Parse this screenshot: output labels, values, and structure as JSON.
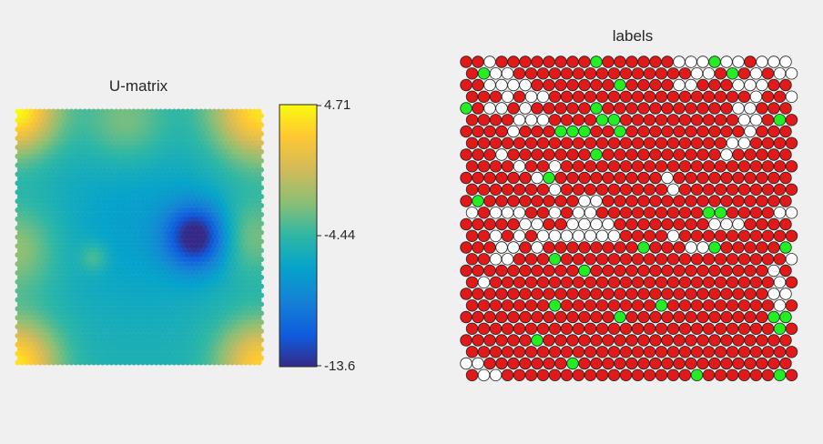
{
  "chart_data": [
    {
      "type": "heatmap",
      "title": "U-matrix",
      "lattice": "hexagonal",
      "colormap": "parula",
      "colorbar": {
        "ticks": [
          "4.71",
          "-4.44",
          "-13.6"
        ],
        "values": [
          4.71,
          -4.44,
          -13.6
        ],
        "lim": [
          -13.6,
          4.71
        ]
      },
      "features": [
        {
          "desc": "high corners",
          "value": 4.71
        },
        {
          "desc": "low basin right-center",
          "value": -13.6
        }
      ]
    },
    {
      "type": "heatmap",
      "title": "labels",
      "lattice": "hexagonal",
      "rows": 28,
      "cols": 28,
      "classes": [
        {
          "color": "#e11919"
        },
        {
          "color": "#ffffff"
        },
        {
          "color": "#22ee22"
        }
      ],
      "grid": [
        "RRWRRRRRRRRGRRRRRRWWWGWWRWWW",
        "RGWWRRRRRRRRRRRRRRRWWRGRWRWW",
        "RRWWWWRRRRRRRGRRRRWWRRRWWWRR",
        "RRRWRWWRRRRRRRRRRRRRRRRRWRRW",
        "GRWWRWRRRRRGRRRRRRRRRRRWWRRR",
        "RRRRWWWRRRRGGRRRRRRRRRRWWRGR",
        "RRRRWRRRGGGRRGRRRRRRRRRRWRRR",
        "RRRRRRRRRRRRRRRRRRRRRRWWRRRR",
        "RRRWRRRRRRRGRRRRRRRRRRWRRRRR",
        "RRRRWRRWRRRRRRRRRRRRRRRRRRRR",
        "RRRRRRWGRRRRRRRRRWRRRRRRRRRR",
        "RRRRRRRWRRRRRRRRRWRRRRRRRRRR",
        "RGRRRRRRRRWWRRRRRRRRRRRRRRRR",
        "WRWWWRRWRWWRRRRRRRRRGGRRRRWW",
        "RRRRRWWRRWWWWRRRRRRRRWWWRRRR",
        "RRWRWRWWWWWWWRRRRWRRRRRRRRRR",
        "RRRWWRWRRRRRRRRGRRRWWGRRRRRG",
        "RRWWRRRGRRRRRRRRRRRRRRRRRRRW",
        "RRRRRRRRRRGRRRRRRRRRRRRRRRWR",
        "RWRRRRRRRRRRRRRRRRRRRRRRRRWR",
        "RRRRRRRRRRRRRRRRRRRRRRRRRRWW",
        "RRRRRRRGRRRRRRRRGRRRRRRRRRWR",
        "RRRRRRRRRRRRRGRRRRRRRRRRRRGG",
        "RRRRRRRRRRRRRRRRRRRRRRRRRRGR",
        "RRRRRRGRRRRRRRRRRRRRRRRRRRRR",
        "RRRRRRRRRRRRRRRRRRRRRRRRRRRR",
        "WWRRRRRRRGRRRRRRRRRRRRRRRRRR",
        "RWWRRRRRRRRRRRRRRRRGRRRRRRGR"
      ]
    }
  ]
}
